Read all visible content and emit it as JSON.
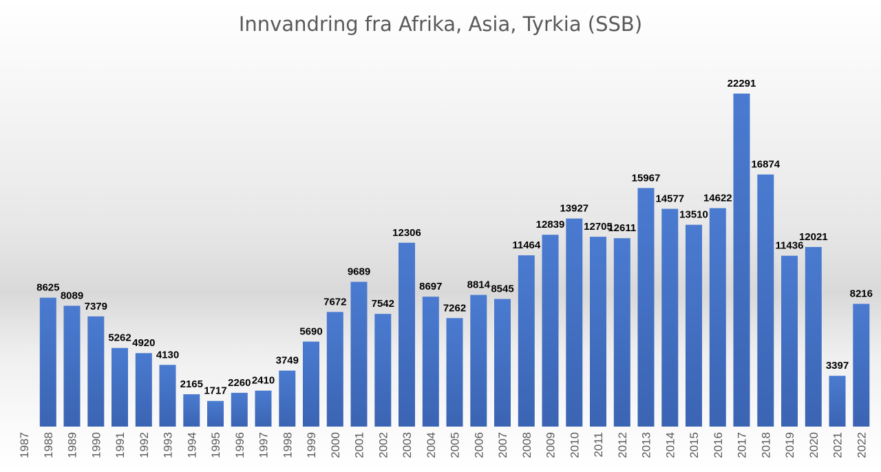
{
  "chart_data": {
    "type": "bar",
    "title": "Innvandring fra Afrika, Asia, Tyrkia (SSB)",
    "xlabel": "",
    "ylabel": "",
    "ylim": [
      0,
      24000
    ],
    "grid": false,
    "legend": "none",
    "bar_color": "#4472c4",
    "categories": [
      "1987",
      "1988",
      "1989",
      "1990",
      "1991",
      "1992",
      "1993",
      "1994",
      "1995",
      "1996",
      "1997",
      "1998",
      "1999",
      "2000",
      "2001",
      "2002",
      "2003",
      "2004",
      "2005",
      "2006",
      "2007",
      "2008",
      "2009",
      "2010",
      "2011",
      "2012",
      "2013",
      "2014",
      "2015",
      "2016",
      "2017",
      "2018",
      "2019",
      "2020",
      "2021",
      "2022"
    ],
    "values": [
      null,
      8625,
      8089,
      7379,
      5262,
      4920,
      4130,
      2165,
      1717,
      2260,
      2410,
      3749,
      5690,
      7672,
      9689,
      7542,
      12306,
      8697,
      7262,
      8814,
      8545,
      11464,
      12839,
      13927,
      12705,
      12611,
      15967,
      14577,
      13510,
      14622,
      22291,
      16874,
      11436,
      12021,
      3397,
      8216
    ]
  }
}
